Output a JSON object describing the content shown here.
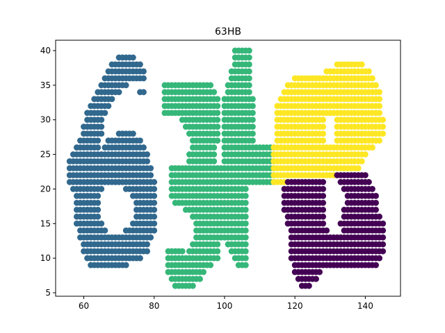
{
  "chart_data": {
    "type": "scatter",
    "title": "63HB",
    "xlabel": "",
    "ylabel": "",
    "xlim": [
      52,
      150
    ],
    "ylim": [
      4.5,
      41.5
    ],
    "xticks": [
      60,
      80,
      100,
      120,
      140
    ],
    "yticks": [
      5,
      10,
      15,
      20,
      25,
      30,
      35,
      40
    ],
    "grid": false,
    "legend": "none",
    "marker_spacing": 1,
    "series": [
      {
        "color": "#31688e",
        "description_rows": [
          [
            39,
            70,
            74
          ],
          [
            38,
            68,
            76
          ],
          [
            37,
            67,
            77
          ],
          [
            36,
            66,
            77
          ],
          [
            35,
            65,
            72
          ],
          [
            34,
            64,
            70
          ],
          [
            34,
            76,
            77
          ],
          [
            33,
            63,
            68
          ],
          [
            32,
            62,
            67
          ],
          [
            31,
            61,
            66
          ],
          [
            30,
            61,
            65
          ],
          [
            29,
            60,
            65
          ],
          [
            28,
            60,
            65
          ],
          [
            28,
            70,
            74
          ],
          [
            27,
            59,
            64
          ],
          [
            27,
            67,
            76
          ],
          [
            26,
            58,
            64
          ],
          [
            26,
            66,
            77
          ],
          [
            25,
            57,
            78
          ],
          [
            24,
            56,
            78
          ],
          [
            23,
            56,
            79
          ],
          [
            22,
            56,
            79
          ],
          [
            21,
            56,
            80
          ],
          [
            20,
            57,
            65
          ],
          [
            20,
            72,
            80
          ],
          [
            19,
            58,
            64
          ],
          [
            19,
            74,
            80
          ],
          [
            18,
            58,
            64
          ],
          [
            18,
            75,
            80
          ],
          [
            17,
            58,
            64
          ],
          [
            17,
            75,
            80
          ],
          [
            16,
            58,
            64
          ],
          [
            16,
            75,
            80
          ],
          [
            15,
            58,
            65
          ],
          [
            15,
            74,
            80
          ],
          [
            14,
            59,
            66
          ],
          [
            14,
            72,
            80
          ],
          [
            13,
            59,
            79
          ],
          [
            12,
            60,
            78
          ],
          [
            11,
            60,
            78
          ],
          [
            10,
            61,
            76
          ],
          [
            9,
            62,
            72
          ]
        ]
      },
      {
        "color": "#35b779",
        "description_rows": [
          [
            40,
            103,
            107
          ],
          [
            39,
            103,
            107
          ],
          [
            38,
            103,
            107
          ],
          [
            37,
            102,
            107
          ],
          [
            36,
            102,
            107
          ],
          [
            35,
            83,
            96
          ],
          [
            35,
            101,
            107
          ],
          [
            34,
            83,
            97
          ],
          [
            34,
            101,
            107
          ],
          [
            33,
            83,
            98
          ],
          [
            33,
            100,
            108
          ],
          [
            32,
            83,
            98
          ],
          [
            32,
            100,
            108
          ],
          [
            31,
            83,
            98
          ],
          [
            31,
            100,
            108
          ],
          [
            30,
            88,
            98
          ],
          [
            30,
            100,
            108
          ],
          [
            29,
            89,
            98
          ],
          [
            29,
            100,
            108
          ],
          [
            28,
            90,
            98
          ],
          [
            28,
            100,
            108
          ],
          [
            27,
            91,
            98
          ],
          [
            27,
            100,
            108
          ],
          [
            26,
            91,
            97
          ],
          [
            26,
            100,
            114
          ],
          [
            25,
            90,
            97
          ],
          [
            25,
            100,
            114
          ],
          [
            24,
            90,
            97
          ],
          [
            24,
            100,
            114
          ],
          [
            23,
            85,
            114
          ],
          [
            22,
            85,
            114
          ],
          [
            21,
            85,
            114
          ],
          [
            20,
            85,
            106
          ],
          [
            19,
            85,
            106
          ],
          [
            18,
            86,
            106
          ],
          [
            17,
            89,
            106
          ],
          [
            16,
            91,
            106
          ],
          [
            15,
            92,
            106
          ],
          [
            14,
            92,
            106
          ],
          [
            13,
            92,
            106
          ],
          [
            12,
            91,
            98
          ],
          [
            12,
            101,
            106
          ],
          [
            11,
            84,
            88
          ],
          [
            11,
            90,
            98
          ],
          [
            11,
            102,
            106
          ],
          [
            10,
            84,
            98
          ],
          [
            10,
            103,
            106
          ],
          [
            9,
            84,
            96
          ],
          [
            9,
            104,
            106
          ],
          [
            8,
            84,
            94
          ],
          [
            7,
            85,
            93
          ],
          [
            6,
            86,
            91
          ]
        ]
      },
      {
        "color": "#fde725",
        "description_rows": [
          [
            38,
            132,
            139
          ],
          [
            37,
            129,
            141
          ],
          [
            36,
            120,
            142
          ],
          [
            35,
            118,
            143
          ],
          [
            34,
            117,
            144
          ],
          [
            33,
            116,
            144
          ],
          [
            32,
            115,
            144
          ],
          [
            31,
            115,
            144
          ],
          [
            30,
            115,
            128
          ],
          [
            30,
            132,
            145
          ],
          [
            29,
            115,
            128
          ],
          [
            29,
            132,
            145
          ],
          [
            28,
            115,
            128
          ],
          [
            28,
            132,
            145
          ],
          [
            27,
            115,
            128
          ],
          [
            27,
            132,
            144
          ],
          [
            26,
            114,
            142
          ],
          [
            25,
            114,
            140
          ],
          [
            24,
            114,
            139
          ],
          [
            23,
            114,
            138
          ],
          [
            22,
            114,
            131
          ],
          [
            21,
            114,
            117
          ]
        ]
      },
      {
        "color": "#440154",
        "description_rows": [
          [
            22,
            132,
            140
          ],
          [
            21,
            118,
            128
          ],
          [
            21,
            133,
            141
          ],
          [
            20,
            117,
            128
          ],
          [
            20,
            134,
            142
          ],
          [
            19,
            117,
            128
          ],
          [
            19,
            135,
            143
          ],
          [
            18,
            117,
            128
          ],
          [
            18,
            135,
            143
          ],
          [
            17,
            117,
            128
          ],
          [
            17,
            134,
            143
          ],
          [
            16,
            118,
            128
          ],
          [
            16,
            134,
            144
          ],
          [
            15,
            118,
            128
          ],
          [
            15,
            133,
            145
          ],
          [
            14,
            119,
            129
          ],
          [
            14,
            134,
            145
          ],
          [
            13,
            119,
            145
          ],
          [
            12,
            119,
            145
          ],
          [
            11,
            119,
            145
          ],
          [
            10,
            119,
            144
          ],
          [
            9,
            120,
            143
          ],
          [
            8,
            120,
            127
          ],
          [
            7,
            121,
            126
          ],
          [
            6,
            122,
            124
          ]
        ]
      }
    ]
  }
}
